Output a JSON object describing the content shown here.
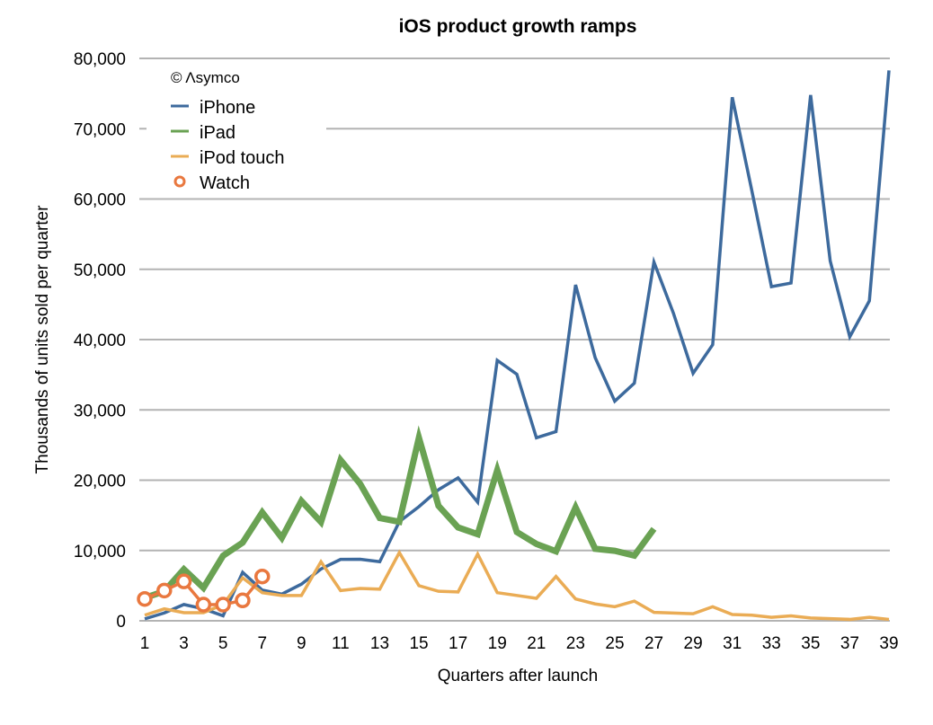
{
  "chart_data": {
    "type": "line",
    "title": "iOS product growth ramps",
    "xlabel": "Quarters after launch",
    "ylabel": "Thousands of units sold per quarter",
    "copyright": "© Λsymco",
    "xlim": [
      1,
      39
    ],
    "ylim": [
      0,
      80000
    ],
    "x_ticks": [
      "1",
      "3",
      "5",
      "7",
      "9",
      "11",
      "13",
      "15",
      "17",
      "19",
      "21",
      "23",
      "25",
      "27",
      "29",
      "31",
      "33",
      "35",
      "37",
      "39"
    ],
    "y_ticks": [
      "0",
      "10,000",
      "20,000",
      "30,000",
      "40,000",
      "50,000",
      "60,000",
      "70,000",
      "80,000"
    ],
    "grid": true,
    "legend_position": "top-left",
    "series": [
      {
        "name": "iPhone",
        "color": "#3d6a9d",
        "width": 3.5,
        "marker": false,
        "values": [
          270,
          1119,
          2315,
          1703,
          717,
          6890,
          4363,
          3793,
          5208,
          7367,
          8737,
          8752,
          8398,
          14102,
          16235,
          18647,
          20338,
          16875,
          37044,
          35064,
          26028,
          26910,
          47789,
          37430,
          31241,
          33797,
          51025,
          43719,
          35203,
          39272,
          74468,
          61170,
          47534,
          48046,
          74779,
          51193,
          40399,
          45513,
          78290
        ]
      },
      {
        "name": "iPad",
        "color": "#6aa253",
        "width": 7,
        "marker": false,
        "values": [
          3270,
          4190,
          7330,
          4690,
          9250,
          11120,
          15430,
          11800,
          17040,
          14040,
          22860,
          19480,
          14620,
          14080,
          26040,
          16350,
          13280,
          12320,
          21420,
          12620,
          10930,
          9880,
          16120,
          10250,
          9950,
          9270,
          13080
        ]
      },
      {
        "name": "iPod touch",
        "color": "#eaac55",
        "width": 3.5,
        "marker": false,
        "values": [
          800,
          1700,
          1150,
          1150,
          2300,
          6100,
          4000,
          3600,
          3600,
          8400,
          4300,
          4600,
          4500,
          9700,
          5000,
          4200,
          4100,
          9500,
          4000,
          3600,
          3200,
          6300,
          3100,
          2400,
          2000,
          2800,
          1200,
          1100,
          1000,
          2000,
          900,
          800,
          500,
          700,
          400,
          300,
          200,
          500,
          200
        ]
      },
      {
        "name": "Watch",
        "color": "#e9783f",
        "width": 3.5,
        "marker": true,
        "values": [
          3100,
          4300,
          5600,
          2300,
          2300,
          2900,
          6300
        ]
      }
    ]
  }
}
